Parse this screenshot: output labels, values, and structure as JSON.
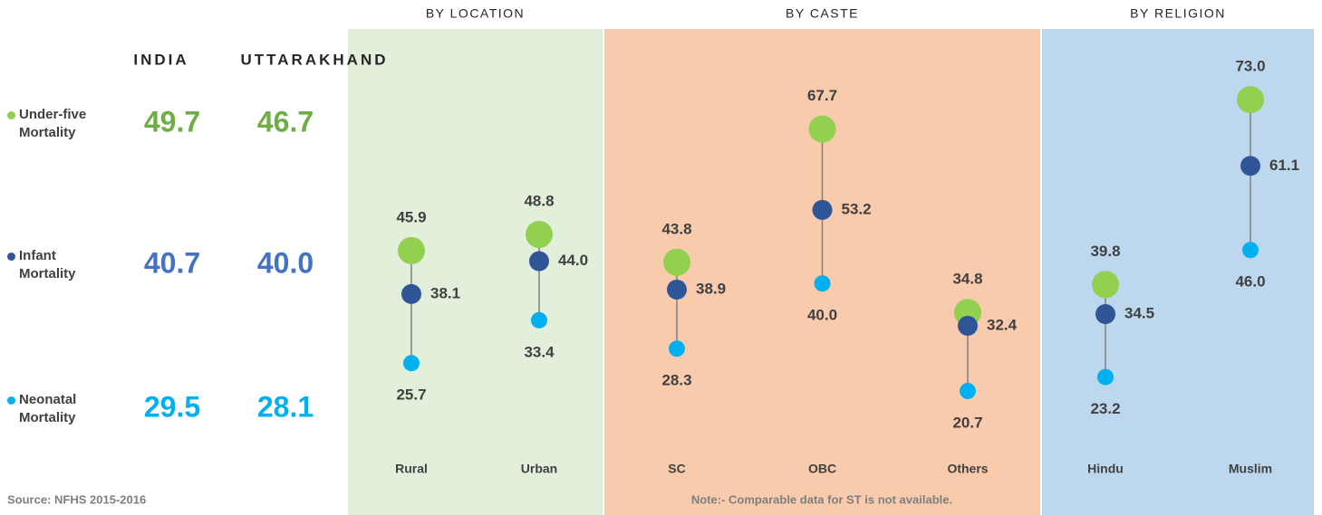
{
  "chart_data": {
    "type": "dumbbell",
    "panels": [
      {
        "title": "BY LOCATION",
        "color": "#e2efda",
        "categories": [
          "Rural",
          "Urban"
        ]
      },
      {
        "title": "BY CASTE",
        "color": "#f8cbad",
        "categories": [
          "SC",
          "OBC",
          "Others"
        ]
      },
      {
        "title": "BY RELIGION",
        "color": "#bdd7ee",
        "categories": [
          "Hindu",
          "Muslim"
        ]
      }
    ],
    "series": [
      {
        "name": "Under-five Mortality",
        "color": "#92d050",
        "text_color": "#70ad47",
        "values": [
          45.9,
          48.8,
          43.8,
          67.7,
          34.8,
          39.8,
          73.0
        ],
        "value_labels": [
          "45.9",
          "48.8",
          "43.8",
          "67.7",
          "34.8",
          "39.8",
          "73.0"
        ]
      },
      {
        "name": "Infant Mortality",
        "color": "#2f5597",
        "text_color": "#4472c4",
        "values": [
          38.1,
          44.0,
          38.9,
          53.2,
          32.4,
          34.5,
          61.1
        ],
        "value_labels": [
          "38.1",
          "44.0",
          "38.9",
          "53.2",
          "32.4",
          "34.5",
          "61.1"
        ]
      },
      {
        "name": "Neonatal Mortality",
        "color": "#00b0f0",
        "text_color": "#00b0f0",
        "values": [
          25.7,
          33.4,
          28.3,
          40.0,
          20.7,
          23.2,
          46.0
        ],
        "value_labels": [
          "25.7",
          "33.4",
          "28.3",
          "40.0",
          "20.7",
          "23.2",
          "46.0"
        ]
      }
    ],
    "summary": {
      "columns": [
        "INDIA",
        "UTTARAKHAND"
      ],
      "values": [
        [
          49.7,
          46.7
        ],
        [
          40.7,
          40.0
        ],
        [
          29.5,
          28.1
        ]
      ],
      "value_labels": [
        [
          "49.7",
          "46.7"
        ],
        [
          "40.7",
          "40.0"
        ],
        [
          "29.5",
          "28.1"
        ]
      ]
    },
    "source": "Source: NFHS 2015-2016",
    "note": "Note:- Comparable data for ST is not available."
  }
}
